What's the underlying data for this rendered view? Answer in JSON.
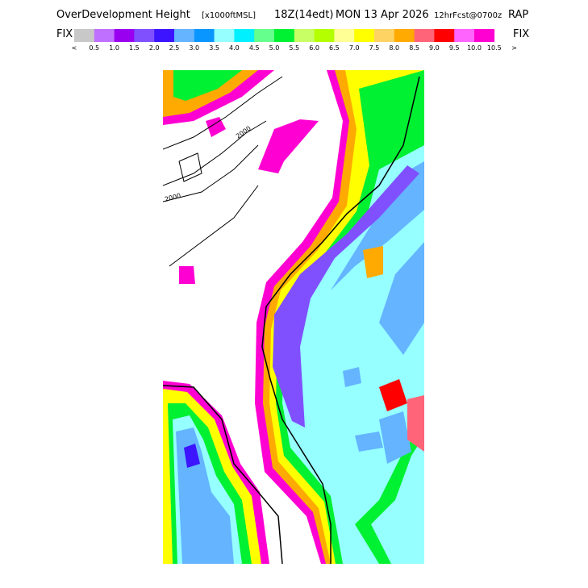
{
  "header": {
    "title": "OverDevelopment Height",
    "units": "[x1000ftMSL]",
    "valid": "18Z(14edt)",
    "date": "MON 13 Apr 2026",
    "forecast": "12hrFcst@0700z",
    "model": "RAP"
  },
  "legend": {
    "left": "FIX",
    "right": "FIX",
    "under": "<",
    "over": ">",
    "labels": [
      "0.5",
      "1.0",
      "1.5",
      "2.0",
      "2.5",
      "3.0",
      "3.5",
      "4.0",
      "4.5",
      "5.0",
      "5.5",
      "6.0",
      "6.5",
      "7.0",
      "7.5",
      "8.0",
      "8.5",
      "9.0",
      "9.5",
      "10.0",
      "10.5"
    ],
    "colors": [
      "#c8c8c8",
      "#c070ff",
      "#9a00f0",
      "#8050ff",
      "#3c14ff",
      "#64b4ff",
      "#0a96ff",
      "#96ffff",
      "#00f0ff",
      "#64ff8c",
      "#00f032",
      "#c8ff64",
      "#b4ff00",
      "#ffff96",
      "#ffff00",
      "#ffd264",
      "#ffaa00",
      "#ff6478",
      "#ff0000",
      "#ff64ff",
      "#ff00d2"
    ]
  },
  "map": {
    "contour_labels": [
      "2000",
      "2000"
    ]
  }
}
